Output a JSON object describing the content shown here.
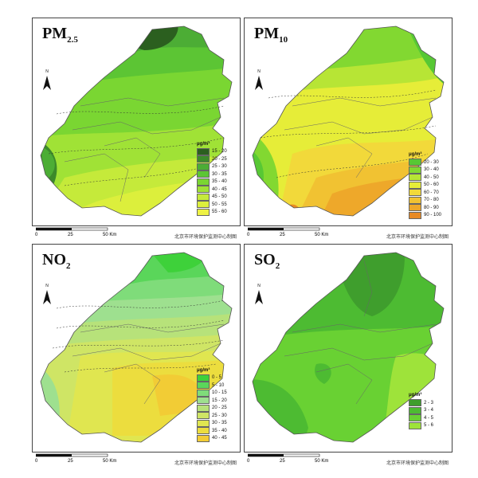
{
  "credit": "北京市环境保护监测中心制图",
  "north_label": "N",
  "scale": {
    "ticks": [
      "0",
      "25",
      "50 Km"
    ]
  },
  "panels": [
    {
      "id": "pm25",
      "title_main": "PM",
      "title_sub": "2.5",
      "legend_title": "μg/m³",
      "legend": [
        {
          "label": "15 - 20",
          "color": "#2b5f1f"
        },
        {
          "label": "20 - 25",
          "color": "#3c8a2a"
        },
        {
          "label": "25 - 30",
          "color": "#4cad35"
        },
        {
          "label": "30 - 35",
          "color": "#5cc534"
        },
        {
          "label": "35 - 40",
          "color": "#7ad632"
        },
        {
          "label": "40 - 45",
          "color": "#a0e236"
        },
        {
          "label": "45 - 50",
          "color": "#c5ea3a"
        },
        {
          "label": "50 - 55",
          "color": "#dcef3c"
        },
        {
          "label": "55 - 60",
          "color": "#eef244"
        }
      ]
    },
    {
      "id": "pm10",
      "title_main": "PM",
      "title_sub": "10",
      "legend_title": "μg/m³",
      "legend": [
        {
          "label": "20 - 30",
          "color": "#57c834"
        },
        {
          "label": "30 - 40",
          "color": "#82d831"
        },
        {
          "label": "40 - 50",
          "color": "#b7e535"
        },
        {
          "label": "50 - 60",
          "color": "#e6ed38"
        },
        {
          "label": "60 - 70",
          "color": "#f2d93a"
        },
        {
          "label": "70 - 80",
          "color": "#f1c232"
        },
        {
          "label": "80 - 90",
          "color": "#eea82a"
        },
        {
          "label": "90 - 100",
          "color": "#e88a24"
        }
      ]
    },
    {
      "id": "no2",
      "title_main": "NO",
      "title_sub": "2",
      "legend_title": "μg/m³",
      "legend": [
        {
          "label": "0 - 5",
          "color": "#3ed13a"
        },
        {
          "label": "5 - 10",
          "color": "#5ad65a"
        },
        {
          "label": "10 - 15",
          "color": "#7fdc7a"
        },
        {
          "label": "15 - 20",
          "color": "#9ee08f"
        },
        {
          "label": "20 - 25",
          "color": "#b7e27a"
        },
        {
          "label": "25 - 30",
          "color": "#cfe565"
        },
        {
          "label": "30 - 35",
          "color": "#e0e650"
        },
        {
          "label": "35 - 40",
          "color": "#ecdd3e"
        },
        {
          "label": "40 - 45",
          "color": "#f2cc35"
        }
      ]
    },
    {
      "id": "so2",
      "title_main": "SO",
      "title_sub": "2",
      "legend_title": "μg/m³",
      "legend": [
        {
          "label": "2 - 3",
          "color": "#3f9e2d"
        },
        {
          "label": "3 - 4",
          "color": "#4dbb32"
        },
        {
          "label": "4 - 5",
          "color": "#69d133"
        },
        {
          "label": "5 - 6",
          "color": "#9ee33a"
        }
      ]
    }
  ]
}
